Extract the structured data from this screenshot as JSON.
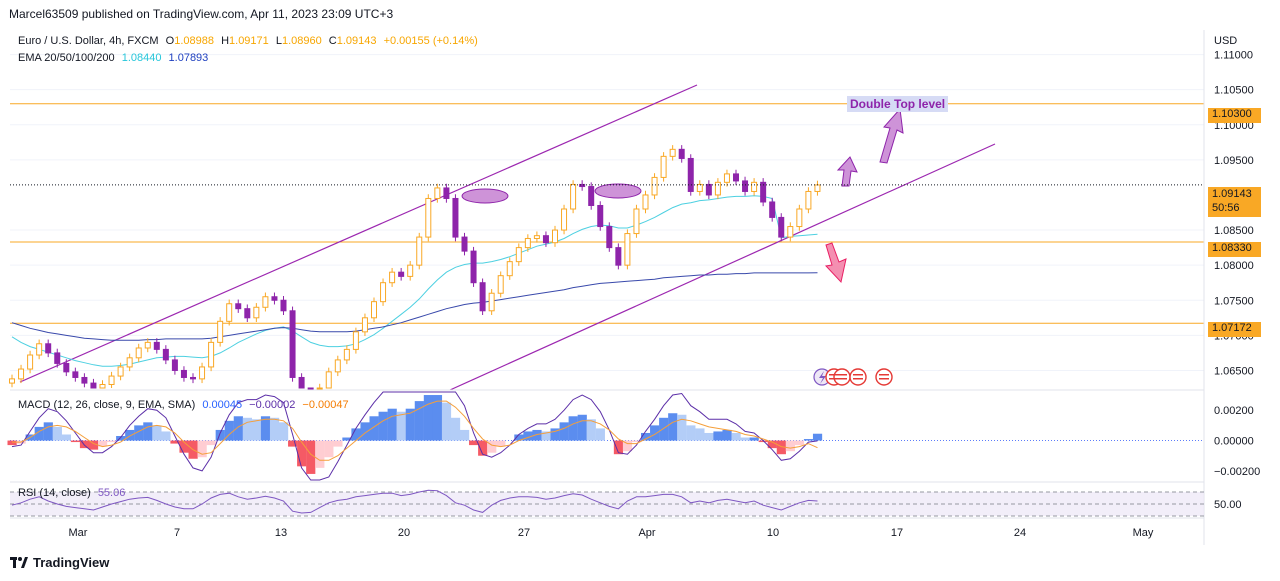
{
  "header": {
    "publisher": "Marcel63509 published on TradingView.com, Apr 11, 2023 23:09 UTC+3"
  },
  "footer": {
    "brand": "TradingView"
  },
  "legend": {
    "symbol": "Euro / U.S. Dollar, 4h, FXCM",
    "open_key": "O",
    "open": "1.08988",
    "high_key": "H",
    "high": "1.09171",
    "low_key": "L",
    "low": "1.08960",
    "close_key": "C",
    "close": "1.09143",
    "change": "+0.00155 (+0.14%)",
    "ema_label": "EMA 20/50/100/200",
    "ema_a": "1.08440",
    "ema_b": "1.07893",
    "macd_label": "MACD (12, 26, close, 9, EMA, SMA)",
    "macd_hist": "0.00045",
    "macd_line": "−0.00002",
    "macd_signal": "−0.00047",
    "rsi_label": "RSI (14, close)",
    "rsi_value": "55.06"
  },
  "price_tags": {
    "level_top": "1.10300",
    "current": "1.09143",
    "countdown": "50:56",
    "level_mid": "1.08330",
    "level_low": "1.07172"
  },
  "annotation": {
    "text": "Double Top level"
  },
  "chart_data": [
    {
      "type": "candlestick",
      "currency": "USD",
      "x_labels": [
        "Mar",
        "7",
        "13",
        "20",
        "27",
        "Apr",
        "10",
        "17",
        "24",
        "May"
      ],
      "y_ticks": [
        1.065,
        1.07,
        1.075,
        1.08,
        1.085,
        1.095,
        1.1,
        1.105,
        1.11
      ],
      "y_range": [
        1.0625,
        1.1135
      ],
      "horizontal_levels": [
        1.103,
        1.0833,
        1.07172
      ],
      "current_price": 1.09143,
      "closes": [
        1.0638,
        1.0652,
        1.0672,
        1.0688,
        1.0675,
        1.066,
        1.0648,
        1.064,
        1.0632,
        1.0625,
        1.063,
        1.0642,
        1.0655,
        1.0668,
        1.0682,
        1.069,
        1.068,
        1.0665,
        1.065,
        1.064,
        1.0638,
        1.0655,
        1.069,
        1.072,
        1.0745,
        1.0738,
        1.0725,
        1.074,
        1.0755,
        1.075,
        1.0735,
        1.064,
        1.0615,
        1.0605,
        1.0625,
        1.0648,
        1.0665,
        1.068,
        1.0705,
        1.0725,
        1.0748,
        1.0775,
        1.079,
        1.0784,
        1.08,
        1.084,
        1.0895,
        1.091,
        1.0895,
        1.084,
        1.082,
        1.0775,
        1.0735,
        1.076,
        1.0785,
        1.0805,
        1.0825,
        1.0838,
        1.0842,
        1.0832,
        1.085,
        1.088,
        1.0915,
        1.0912,
        1.0885,
        1.0855,
        1.0825,
        1.08,
        1.0845,
        1.088,
        1.09,
        1.0925,
        1.0955,
        1.0965,
        1.0952,
        1.0905,
        1.0915,
        1.09,
        1.0918,
        1.093,
        1.092,
        1.0905,
        1.0918,
        1.089,
        1.0868,
        1.084,
        1.0855,
        1.088,
        1.0905,
        1.09143
      ],
      "ema_fast": [
        1.0698,
        1.069,
        1.0684,
        1.068,
        1.0676,
        1.0672,
        1.0668,
        1.0664,
        1.0661,
        1.0658,
        1.0656,
        1.0656,
        1.0657,
        1.0659,
        1.0662,
        1.0665,
        1.0668,
        1.0669,
        1.067,
        1.067,
        1.0669,
        1.0668,
        1.067,
        1.0675,
        1.0682,
        1.069,
        1.0696,
        1.0702,
        1.0707,
        1.071,
        1.0712,
        1.0706,
        1.0698,
        1.069,
        1.0686,
        1.0684,
        1.0684,
        1.0685,
        1.0688,
        1.0694,
        1.0701,
        1.071,
        1.072,
        1.073,
        1.074,
        1.0752,
        1.0766,
        1.0779,
        1.079,
        1.0797,
        1.0801,
        1.0803,
        1.0803,
        1.0805,
        1.0808,
        1.0812,
        1.0817,
        1.0822,
        1.0827,
        1.083,
        1.0833,
        1.0838,
        1.0845,
        1.0851,
        1.0855,
        1.0857,
        1.0856,
        1.0853,
        1.0853,
        1.0857,
        1.0862,
        1.0868,
        1.0875,
        1.0882,
        1.0887,
        1.0889,
        1.0892,
        1.0893,
        1.0895,
        1.0897,
        1.0898,
        1.0898,
        1.0899,
        1.0898,
        1.0895,
        1.0839,
        1.0841,
        1.0842,
        1.0843,
        1.0844
      ],
      "ema_slow": [
        1.0718,
        1.0714,
        1.071,
        1.0707,
        1.0704,
        1.0702,
        1.07,
        1.0698,
        1.0696,
        1.0695,
        1.0694,
        1.0693,
        1.0693,
        1.0693,
        1.0693,
        1.0694,
        1.0694,
        1.0695,
        1.0695,
        1.0695,
        1.0695,
        1.0695,
        1.0696,
        1.0698,
        1.07,
        1.0702,
        1.0704,
        1.0706,
        1.0708,
        1.071,
        1.0711,
        1.071,
        1.0708,
        1.0706,
        1.0705,
        1.0705,
        1.0705,
        1.0705,
        1.0706,
        1.0708,
        1.071,
        1.0712,
        1.0715,
        1.0718,
        1.0722,
        1.0726,
        1.073,
        1.0734,
        1.0738,
        1.0741,
        1.0744,
        1.0746,
        1.0747,
        1.0749,
        1.0751,
        1.0753,
        1.0755,
        1.0757,
        1.0759,
        1.0761,
        1.0763,
        1.0765,
        1.0768,
        1.077,
        1.0772,
        1.0774,
        1.0775,
        1.0776,
        1.0777,
        1.0778,
        1.0779,
        1.078,
        1.0782,
        1.0783,
        1.0784,
        1.0785,
        1.0786,
        1.0786,
        1.0787,
        1.0787,
        1.0788,
        1.0788,
        1.0789,
        1.0789,
        1.0789,
        1.0789,
        1.0789,
        1.0789,
        1.0789,
        1.07893
      ]
    },
    {
      "type": "bar",
      "name": "MACD",
      "y_ticks": [
        0.002,
        0.0,
        -0.002
      ],
      "y_range": [
        -0.0026,
        0.0032
      ],
      "histogram": [
        -0.0003,
        -0.0002,
        0.0004,
        0.0009,
        0.0012,
        0.0009,
        0.0004,
        -0.0001,
        -0.0005,
        -0.0006,
        -0.0004,
        -0.0001,
        0.0003,
        0.0007,
        0.001,
        0.0012,
        0.001,
        0.0006,
        -0.0002,
        -0.0008,
        -0.0012,
        -0.0011,
        -0.0003,
        0.0007,
        0.0013,
        0.0016,
        0.0015,
        0.0014,
        0.0016,
        0.0015,
        0.0012,
        -0.0004,
        -0.0017,
        -0.0022,
        -0.0018,
        -0.0011,
        -0.0004,
        0.0002,
        0.0008,
        0.0012,
        0.0016,
        0.0019,
        0.0021,
        0.0019,
        0.0021,
        0.0026,
        0.003,
        0.003,
        0.0025,
        0.0015,
        0.0007,
        -0.0003,
        -0.001,
        -0.0008,
        -0.0004,
        0.0,
        0.0004,
        0.0006,
        0.0007,
        0.0006,
        0.0008,
        0.0012,
        0.0016,
        0.0017,
        0.0014,
        0.0008,
        0.0,
        -0.0009,
        -0.0007,
        -0.0001,
        0.0005,
        0.001,
        0.0015,
        0.0018,
        0.0017,
        0.001,
        0.0008,
        0.0005,
        0.0006,
        0.0007,
        0.0005,
        0.0002,
        0.0002,
        -0.0001,
        -0.0005,
        -0.0009,
        -0.0007,
        -0.0003,
        0.0001,
        0.00045
      ],
      "signal": [
        -0.0001,
        -0.0001,
        0.0002,
        0.0006,
        0.0009,
        0.001,
        0.0009,
        0.0006,
        0.0002,
        -0.0002,
        -0.0004,
        -0.0003,
        -0.0001,
        0.0003,
        0.0006,
        0.0009,
        0.001,
        0.0009,
        0.0005,
        -0.0001,
        -0.0006,
        -0.0009,
        -0.0008,
        -0.0002,
        0.0004,
        0.0009,
        0.0012,
        0.0013,
        0.0014,
        0.0014,
        0.0013,
        0.0008,
        -0.0001,
        -0.0009,
        -0.0013,
        -0.0013,
        -0.001,
        -0.0005,
        0.0,
        0.0005,
        0.0009,
        0.0013,
        0.0016,
        0.0017,
        0.0018,
        0.0021,
        0.0024,
        0.0026,
        0.0026,
        0.0022,
        0.0016,
        0.0008,
        0.0001,
        -0.0003,
        -0.0004,
        -0.0003,
        0.0,
        0.0002,
        0.0004,
        0.0005,
        0.0006,
        0.0008,
        0.0011,
        0.0013,
        0.0013,
        0.0011,
        0.0007,
        0.0001,
        -0.0002,
        -0.0002,
        0.0001,
        0.0004,
        0.0008,
        0.0012,
        0.0014,
        0.0013,
        0.0011,
        0.0009,
        0.0008,
        0.0007,
        0.0006,
        0.0004,
        0.0003,
        0.0001,
        -0.0001,
        -0.0004,
        -0.0005,
        -0.0004,
        -0.0002,
        -0.00047
      ]
    },
    {
      "type": "line",
      "name": "RSI",
      "y_ticks": [
        50.0
      ],
      "y_range": [
        30,
        80
      ],
      "band": [
        30,
        70
      ],
      "values": [
        48,
        52,
        58,
        62,
        55,
        50,
        46,
        44,
        42,
        40,
        45,
        50,
        54,
        58,
        60,
        61,
        56,
        50,
        45,
        42,
        42,
        50,
        60,
        66,
        68,
        62,
        58,
        60,
        63,
        60,
        55,
        38,
        35,
        36,
        44,
        52,
        56,
        58,
        62,
        64,
        66,
        68,
        68,
        64,
        66,
        70,
        73,
        72,
        64,
        52,
        48,
        40,
        36,
        48,
        56,
        60,
        62,
        62,
        61,
        58,
        60,
        64,
        67,
        65,
        58,
        52,
        46,
        42,
        55,
        62,
        62,
        64,
        66,
        66,
        62,
        52,
        55,
        52,
        56,
        58,
        55,
        52,
        55,
        48,
        44,
        40,
        46,
        52,
        56,
        55.06
      ]
    }
  ]
}
